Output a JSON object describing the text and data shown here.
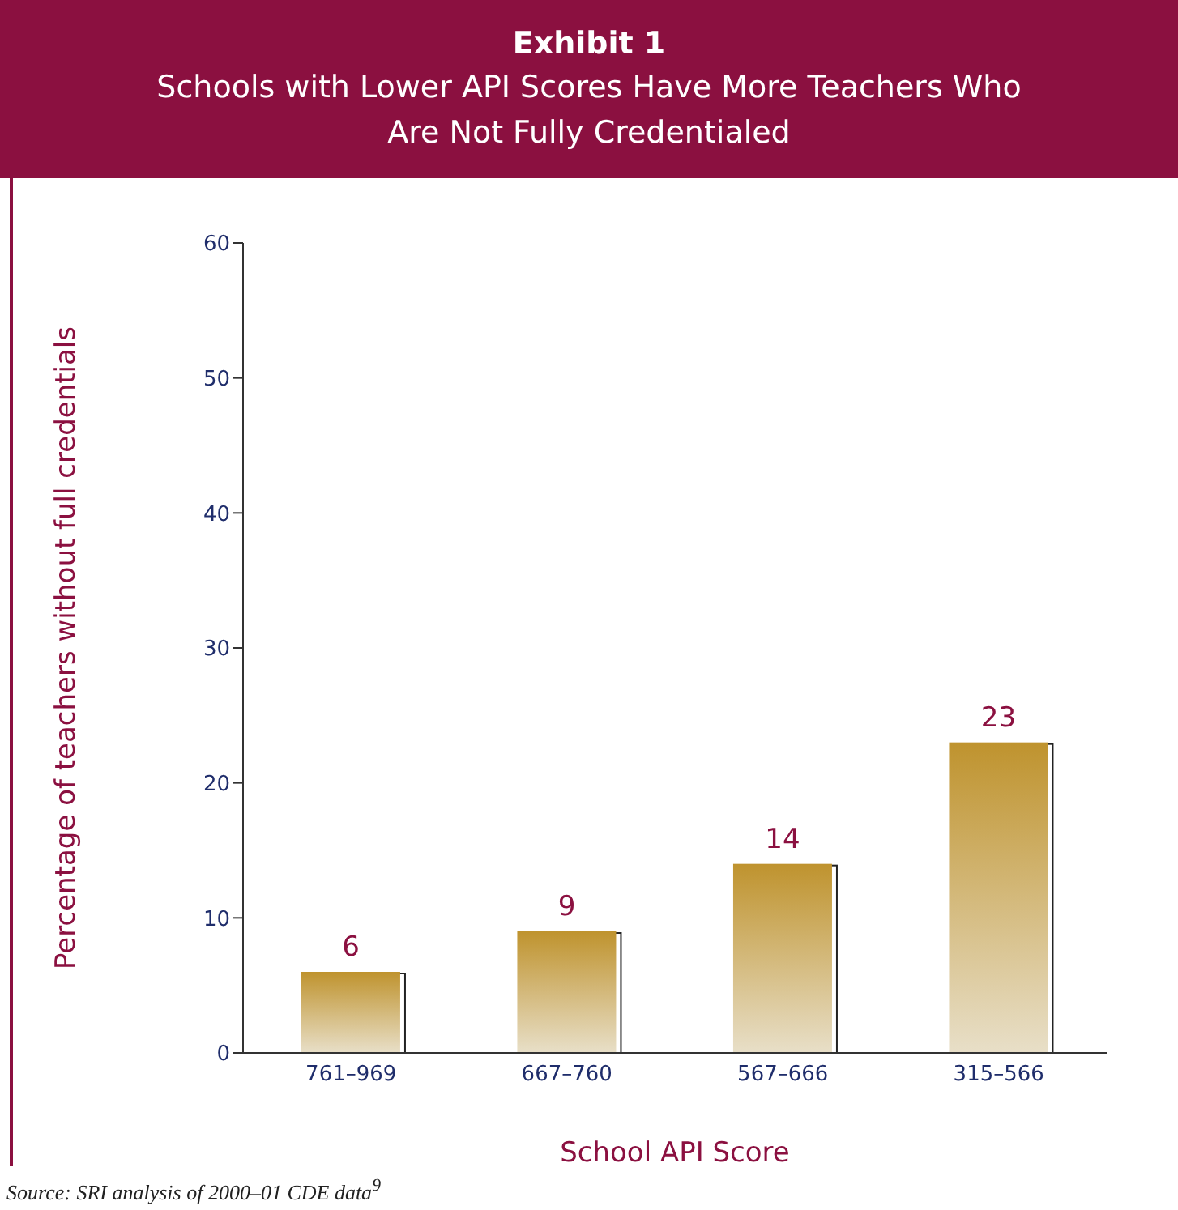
{
  "chart_data": {
    "type": "bar",
    "title": "Exhibit 1",
    "subtitle": "Schools with Lower API Scores Have More Teachers Who Are Not Fully Credentialed",
    "xlabel": "School API Score",
    "ylabel": "Percentage of teachers without full credentials",
    "categories": [
      "761–969",
      "667–760",
      "567–666",
      "315–566"
    ],
    "values": [
      6,
      9,
      14,
      23
    ],
    "color": "#bf932e",
    "ylim": [
      0,
      60
    ],
    "yticks": [
      0,
      10,
      20,
      30,
      40,
      50,
      60
    ],
    "data_labels": true,
    "annotations": [
      "Source: SRI analysis of 2000–01 CDE data$^{9}$"
    ]
  }
}
